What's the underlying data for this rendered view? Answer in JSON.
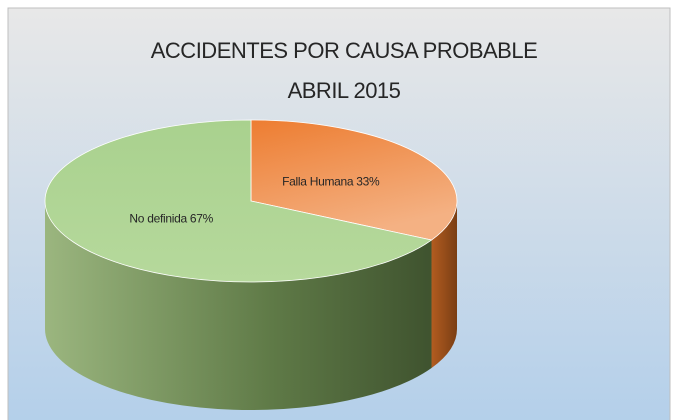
{
  "chart_data": {
    "type": "pie3d",
    "title": "ACCIDENTES POR CAUSA PROBABLE",
    "subtitle": "ABRIL  2015",
    "values": [
      33,
      67
    ],
    "value_labels": [
      "Falla Humana 33%",
      "No definida 67%"
    ],
    "colors": [
      "#ed7d31",
      "#a9d18e"
    ]
  }
}
